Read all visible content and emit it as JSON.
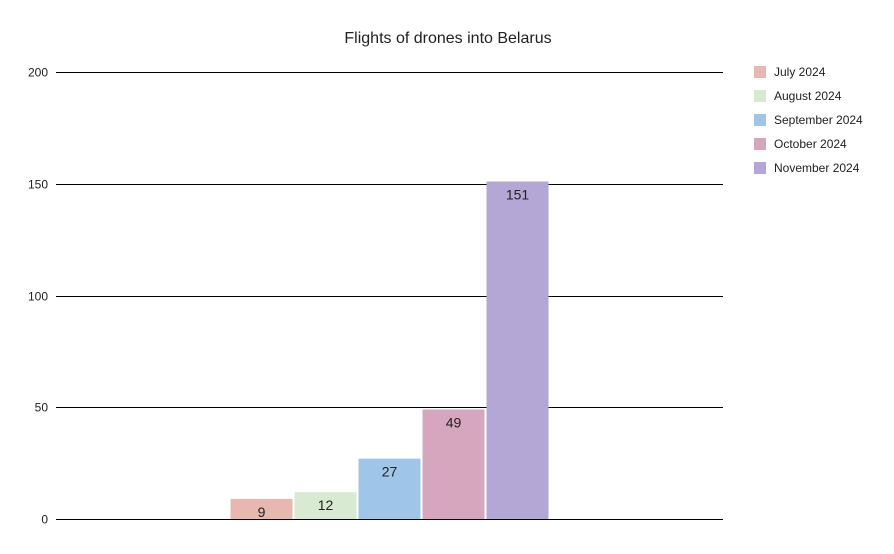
{
  "chart_data": {
    "type": "bar",
    "title": "Flights of drones into Belarus",
    "xlabel": "",
    "ylabel": "",
    "ylim": [
      0,
      200
    ],
    "yticks": [
      0,
      50,
      100,
      150,
      200
    ],
    "grid": true,
    "legend_position": "right",
    "series": [
      {
        "name": "July 2024",
        "value": 9,
        "color": "#e6b8af"
      },
      {
        "name": "August 2024",
        "value": 12,
        "color": "#d9ead3"
      },
      {
        "name": "September 2024",
        "value": 27,
        "color": "#9fc5e8"
      },
      {
        "name": "October 2024",
        "value": 49,
        "color": "#d5a6bd"
      },
      {
        "name": "November 2024",
        "value": 151,
        "color": "#b4a7d6"
      }
    ]
  }
}
